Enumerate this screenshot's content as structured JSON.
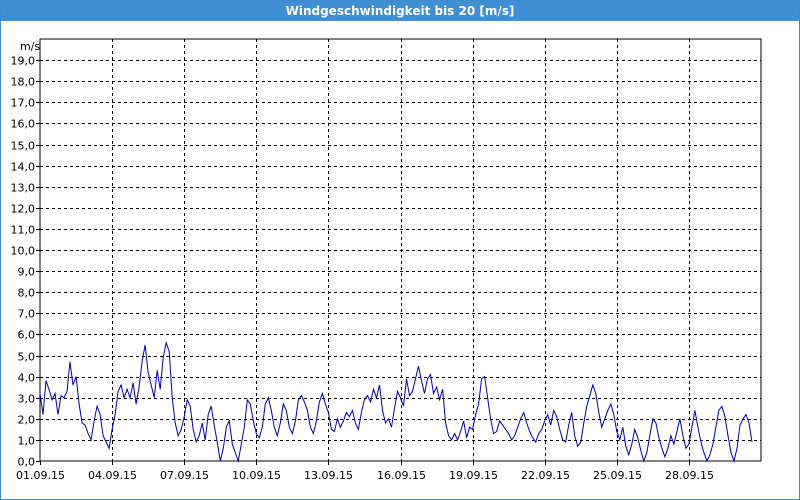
{
  "window": {
    "title": "Windgeschwindigkeit bis 20 [m/s]"
  },
  "chart_data": {
    "type": "line",
    "title": "Windgeschwindigkeit bis 20 [m/s]",
    "ylabel": "m/s",
    "xlabel": "",
    "ylim": [
      0,
      20
    ],
    "xlim": [
      "2015-09-01",
      "2015-10-01"
    ],
    "grid": true,
    "line_color": "#0000aa",
    "grid_color": "#000000",
    "y_ticks": [
      "0,0",
      "1,0",
      "2,0",
      "3,0",
      "4,0",
      "5,0",
      "6,0",
      "7,0",
      "8,0",
      "9,0",
      "10,0",
      "11,0",
      "12,0",
      "13,0",
      "14,0",
      "15,0",
      "16,0",
      "17,0",
      "18,0",
      "19,0"
    ],
    "x_ticks": [
      {
        "date": "2015-09-01",
        "label": "01.09.15"
      },
      {
        "date": "2015-09-04",
        "label": "04.09.15"
      },
      {
        "date": "2015-09-07",
        "label": "07.09.15"
      },
      {
        "date": "2015-09-10",
        "label": "10.09.15"
      },
      {
        "date": "2015-09-13",
        "label": "13.09.15"
      },
      {
        "date": "2015-09-16",
        "label": "16.09.15"
      },
      {
        "date": "2015-09-19",
        "label": "19.09.15"
      },
      {
        "date": "2015-09-22",
        "label": "22.09.15"
      },
      {
        "date": "2015-09-25",
        "label": "25.09.15"
      },
      {
        "date": "2015-09-28",
        "label": "28.09.15"
      }
    ],
    "series": [
      {
        "points": [
          [
            "2015-09-01T00:00",
            3.2
          ],
          [
            "2015-09-01T03:00",
            2.2
          ],
          [
            "2015-09-01T06:00",
            3.8
          ],
          [
            "2015-09-01T09:00",
            3.4
          ],
          [
            "2015-09-01T12:00",
            2.9
          ],
          [
            "2015-09-01T15:00",
            3.2
          ],
          [
            "2015-09-01T18:00",
            2.2
          ],
          [
            "2015-09-01T21:00",
            3.1
          ],
          [
            "2015-09-02T00:00",
            3.0
          ],
          [
            "2015-09-02T03:00",
            3.3
          ],
          [
            "2015-09-02T06:00",
            4.7
          ],
          [
            "2015-09-02T09:00",
            3.6
          ],
          [
            "2015-09-02T12:00",
            4.0
          ],
          [
            "2015-09-02T15:00",
            2.7
          ],
          [
            "2015-09-02T18:00",
            1.8
          ],
          [
            "2015-09-02T21:00",
            1.7
          ],
          [
            "2015-09-03T00:00",
            1.3
          ],
          [
            "2015-09-03T03:00",
            1.0
          ],
          [
            "2015-09-03T06:00",
            1.9
          ],
          [
            "2015-09-03T09:00",
            2.6
          ],
          [
            "2015-09-03T12:00",
            2.2
          ],
          [
            "2015-09-03T15:00",
            1.2
          ],
          [
            "2015-09-03T18:00",
            0.9
          ],
          [
            "2015-09-03T21:00",
            0.6
          ],
          [
            "2015-09-04T00:00",
            1.5
          ],
          [
            "2015-09-04T03:00",
            2.2
          ],
          [
            "2015-09-04T06:00",
            3.3
          ],
          [
            "2015-09-04T09:00",
            3.6
          ],
          [
            "2015-09-04T12:00",
            3.0
          ],
          [
            "2015-09-04T15:00",
            3.4
          ],
          [
            "2015-09-04T18:00",
            3.0
          ],
          [
            "2015-09-04T21:00",
            3.7
          ],
          [
            "2015-09-05T00:00",
            2.7
          ],
          [
            "2015-09-05T03:00",
            3.5
          ],
          [
            "2015-09-05T06:00",
            4.7
          ],
          [
            "2015-09-05T09:00",
            5.5
          ],
          [
            "2015-09-05T12:00",
            4.2
          ],
          [
            "2015-09-05T15:00",
            3.6
          ],
          [
            "2015-09-05T18:00",
            3.0
          ],
          [
            "2015-09-05T21:00",
            4.3
          ],
          [
            "2015-09-06T00:00",
            3.4
          ],
          [
            "2015-09-06T03:00",
            4.9
          ],
          [
            "2015-09-06T06:00",
            5.6
          ],
          [
            "2015-09-06T09:00",
            5.2
          ],
          [
            "2015-09-06T12:00",
            3.0
          ],
          [
            "2015-09-06T15:00",
            1.8
          ],
          [
            "2015-09-06T18:00",
            1.2
          ],
          [
            "2015-09-06T21:00",
            1.5
          ],
          [
            "2015-09-07T00:00",
            2.1
          ],
          [
            "2015-09-07T03:00",
            2.9
          ],
          [
            "2015-09-07T06:00",
            2.6
          ],
          [
            "2015-09-07T09:00",
            1.5
          ],
          [
            "2015-09-07T12:00",
            0.9
          ],
          [
            "2015-09-07T15:00",
            1.2
          ],
          [
            "2015-09-07T18:00",
            1.8
          ],
          [
            "2015-09-07T21:00",
            1.0
          ],
          [
            "2015-09-08T00:00",
            2.2
          ],
          [
            "2015-09-08T03:00",
            2.6
          ],
          [
            "2015-09-08T06:00",
            1.7
          ],
          [
            "2015-09-08T09:00",
            0.9
          ],
          [
            "2015-09-08T12:00",
            0.0
          ],
          [
            "2015-09-08T15:00",
            0.6
          ],
          [
            "2015-09-08T18:00",
            1.6
          ],
          [
            "2015-09-08T21:00",
            1.9
          ],
          [
            "2015-09-09T00:00",
            0.8
          ],
          [
            "2015-09-09T03:00",
            0.4
          ],
          [
            "2015-09-09T06:00",
            0.0
          ],
          [
            "2015-09-09T09:00",
            0.8
          ],
          [
            "2015-09-09T12:00",
            1.6
          ],
          [
            "2015-09-09T15:00",
            2.9
          ],
          [
            "2015-09-09T18:00",
            2.7
          ],
          [
            "2015-09-09T21:00",
            1.9
          ],
          [
            "2015-09-10T00:00",
            1.3
          ],
          [
            "2015-09-10T03:00",
            1.1
          ],
          [
            "2015-09-10T06:00",
            1.6
          ],
          [
            "2015-09-10T09:00",
            2.7
          ],
          [
            "2015-09-10T12:00",
            3.0
          ],
          [
            "2015-09-10T15:00",
            2.4
          ],
          [
            "2015-09-10T18:00",
            1.6
          ],
          [
            "2015-09-10T21:00",
            1.2
          ],
          [
            "2015-09-11T00:00",
            1.8
          ],
          [
            "2015-09-11T03:00",
            2.7
          ],
          [
            "2015-09-11T06:00",
            2.4
          ],
          [
            "2015-09-11T09:00",
            1.6
          ],
          [
            "2015-09-11T12:00",
            1.3
          ],
          [
            "2015-09-11T15:00",
            1.9
          ],
          [
            "2015-09-11T18:00",
            2.9
          ],
          [
            "2015-09-11T21:00",
            3.1
          ],
          [
            "2015-09-12T00:00",
            2.8
          ],
          [
            "2015-09-12T03:00",
            2.4
          ],
          [
            "2015-09-12T06:00",
            1.6
          ],
          [
            "2015-09-12T09:00",
            1.3
          ],
          [
            "2015-09-12T12:00",
            1.9
          ],
          [
            "2015-09-12T15:00",
            2.8
          ],
          [
            "2015-09-12T18:00",
            3.2
          ],
          [
            "2015-09-12T21:00",
            2.7
          ],
          [
            "2015-09-13T00:00",
            2.3
          ],
          [
            "2015-09-13T03:00",
            1.5
          ],
          [
            "2015-09-13T06:00",
            1.4
          ],
          [
            "2015-09-13T09:00",
            2.0
          ],
          [
            "2015-09-13T12:00",
            1.6
          ],
          [
            "2015-09-13T15:00",
            1.9
          ],
          [
            "2015-09-13T18:00",
            2.3
          ],
          [
            "2015-09-13T21:00",
            2.1
          ],
          [
            "2015-09-14T00:00",
            2.4
          ],
          [
            "2015-09-14T03:00",
            1.8
          ],
          [
            "2015-09-14T06:00",
            1.5
          ],
          [
            "2015-09-14T09:00",
            2.3
          ],
          [
            "2015-09-14T12:00",
            2.9
          ],
          [
            "2015-09-14T15:00",
            3.1
          ],
          [
            "2015-09-14T18:00",
            2.8
          ],
          [
            "2015-09-14T21:00",
            3.4
          ],
          [
            "2015-09-15T00:00",
            3.0
          ],
          [
            "2015-09-15T03:00",
            3.6
          ],
          [
            "2015-09-15T06:00",
            2.4
          ],
          [
            "2015-09-15T09:00",
            1.8
          ],
          [
            "2015-09-15T12:00",
            2.0
          ],
          [
            "2015-09-15T15:00",
            1.6
          ],
          [
            "2015-09-15T18:00",
            2.5
          ],
          [
            "2015-09-15T21:00",
            3.3
          ],
          [
            "2015-09-16T00:00",
            3.0
          ],
          [
            "2015-09-16T03:00",
            2.6
          ],
          [
            "2015-09-16T06:00",
            3.9
          ],
          [
            "2015-09-16T09:00",
            3.1
          ],
          [
            "2015-09-16T12:00",
            3.3
          ],
          [
            "2015-09-16T15:00",
            3.9
          ],
          [
            "2015-09-16T18:00",
            4.5
          ],
          [
            "2015-09-16T21:00",
            3.8
          ],
          [
            "2015-09-17T00:00",
            3.2
          ],
          [
            "2015-09-17T03:00",
            3.9
          ],
          [
            "2015-09-17T06:00",
            4.1
          ],
          [
            "2015-09-17T09:00",
            3.2
          ],
          [
            "2015-09-17T12:00",
            3.5
          ],
          [
            "2015-09-17T15:00",
            2.9
          ],
          [
            "2015-09-17T18:00",
            3.4
          ],
          [
            "2015-09-17T21:00",
            1.8
          ],
          [
            "2015-09-18T00:00",
            1.2
          ],
          [
            "2015-09-18T03:00",
            1.0
          ],
          [
            "2015-09-18T06:00",
            1.3
          ],
          [
            "2015-09-18T09:00",
            1.0
          ],
          [
            "2015-09-18T12:00",
            1.4
          ],
          [
            "2015-09-18T15:00",
            1.9
          ],
          [
            "2015-09-18T18:00",
            1.1
          ],
          [
            "2015-09-18T21:00",
            1.6
          ],
          [
            "2015-09-19T00:00",
            1.5
          ],
          [
            "2015-09-19T03:00",
            2.2
          ],
          [
            "2015-09-19T06:00",
            2.7
          ],
          [
            "2015-09-19T09:00",
            3.9
          ],
          [
            "2015-09-19T12:00",
            4.0
          ],
          [
            "2015-09-19T15:00",
            3.0
          ],
          [
            "2015-09-19T18:00",
            2.0
          ],
          [
            "2015-09-19T21:00",
            1.3
          ],
          [
            "2015-09-20T00:00",
            1.4
          ],
          [
            "2015-09-20T03:00",
            1.9
          ],
          [
            "2015-09-20T06:00",
            1.7
          ],
          [
            "2015-09-20T09:00",
            1.5
          ],
          [
            "2015-09-20T12:00",
            1.3
          ],
          [
            "2015-09-20T15:00",
            1.0
          ],
          [
            "2015-09-20T18:00",
            1.2
          ],
          [
            "2015-09-20T21:00",
            1.6
          ],
          [
            "2015-09-21T00:00",
            2.0
          ],
          [
            "2015-09-21T03:00",
            2.3
          ],
          [
            "2015-09-21T06:00",
            1.8
          ],
          [
            "2015-09-21T09:00",
            1.4
          ],
          [
            "2015-09-21T12:00",
            1.1
          ],
          [
            "2015-09-21T15:00",
            0.9
          ],
          [
            "2015-09-21T18:00",
            1.3
          ],
          [
            "2015-09-21T21:00",
            1.5
          ],
          [
            "2015-09-22T00:00",
            1.9
          ],
          [
            "2015-09-22T03:00",
            2.2
          ],
          [
            "2015-09-22T06:00",
            1.7
          ],
          [
            "2015-09-22T09:00",
            2.4
          ],
          [
            "2015-09-22T12:00",
            2.1
          ],
          [
            "2015-09-22T15:00",
            1.5
          ],
          [
            "2015-09-22T18:00",
            1.0
          ],
          [
            "2015-09-22T21:00",
            0.9
          ],
          [
            "2015-09-23T00:00",
            1.7
          ],
          [
            "2015-09-23T03:00",
            2.3
          ],
          [
            "2015-09-23T06:00",
            1.2
          ],
          [
            "2015-09-23T09:00",
            0.7
          ],
          [
            "2015-09-23T12:00",
            0.9
          ],
          [
            "2015-09-23T15:00",
            1.8
          ],
          [
            "2015-09-23T18:00",
            2.6
          ],
          [
            "2015-09-23T21:00",
            3.1
          ],
          [
            "2015-09-24T00:00",
            3.6
          ],
          [
            "2015-09-24T03:00",
            3.2
          ],
          [
            "2015-09-24T06:00",
            2.3
          ],
          [
            "2015-09-24T09:00",
            1.6
          ],
          [
            "2015-09-24T12:00",
            2.0
          ],
          [
            "2015-09-24T15:00",
            2.4
          ],
          [
            "2015-09-24T18:00",
            2.7
          ],
          [
            "2015-09-24T21:00",
            2.2
          ],
          [
            "2015-09-25T00:00",
            1.4
          ],
          [
            "2015-09-25T03:00",
            1.0
          ],
          [
            "2015-09-25T06:00",
            1.6
          ],
          [
            "2015-09-25T09:00",
            0.7
          ],
          [
            "2015-09-25T12:00",
            0.3
          ],
          [
            "2015-09-25T15:00",
            0.8
          ],
          [
            "2015-09-25T18:00",
            1.5
          ],
          [
            "2015-09-25T21:00",
            1.1
          ],
          [
            "2015-09-26T00:00",
            0.5
          ],
          [
            "2015-09-26T03:00",
            0.0
          ],
          [
            "2015-09-26T06:00",
            0.4
          ],
          [
            "2015-09-26T09:00",
            1.2
          ],
          [
            "2015-09-26T12:00",
            2.0
          ],
          [
            "2015-09-26T15:00",
            1.8
          ],
          [
            "2015-09-26T18:00",
            1.1
          ],
          [
            "2015-09-26T21:00",
            0.6
          ],
          [
            "2015-09-27T00:00",
            0.2
          ],
          [
            "2015-09-27T03:00",
            0.6
          ],
          [
            "2015-09-27T06:00",
            1.2
          ],
          [
            "2015-09-27T09:00",
            0.8
          ],
          [
            "2015-09-27T12:00",
            1.4
          ],
          [
            "2015-09-27T15:00",
            2.0
          ],
          [
            "2015-09-27T18:00",
            1.2
          ],
          [
            "2015-09-27T21:00",
            0.6
          ],
          [
            "2015-09-28T00:00",
            0.8
          ],
          [
            "2015-09-28T03:00",
            1.6
          ],
          [
            "2015-09-28T06:00",
            2.4
          ],
          [
            "2015-09-28T09:00",
            1.6
          ],
          [
            "2015-09-28T12:00",
            0.9
          ],
          [
            "2015-09-28T15:00",
            0.4
          ],
          [
            "2015-09-28T18:00",
            0.0
          ],
          [
            "2015-09-28T21:00",
            0.3
          ],
          [
            "2015-09-29T00:00",
            0.8
          ],
          [
            "2015-09-29T03:00",
            1.6
          ],
          [
            "2015-09-29T06:00",
            2.4
          ],
          [
            "2015-09-29T09:00",
            2.6
          ],
          [
            "2015-09-29T12:00",
            2.1
          ],
          [
            "2015-09-29T15:00",
            1.2
          ],
          [
            "2015-09-29T18:00",
            0.4
          ],
          [
            "2015-09-29T21:00",
            0.0
          ],
          [
            "2015-09-30T00:00",
            0.6
          ],
          [
            "2015-09-30T03:00",
            1.7
          ],
          [
            "2015-09-30T06:00",
            2.0
          ],
          [
            "2015-09-30T09:00",
            2.2
          ],
          [
            "2015-09-30T12:00",
            1.8
          ],
          [
            "2015-09-30T15:00",
            0.9
          ]
        ]
      }
    ]
  }
}
